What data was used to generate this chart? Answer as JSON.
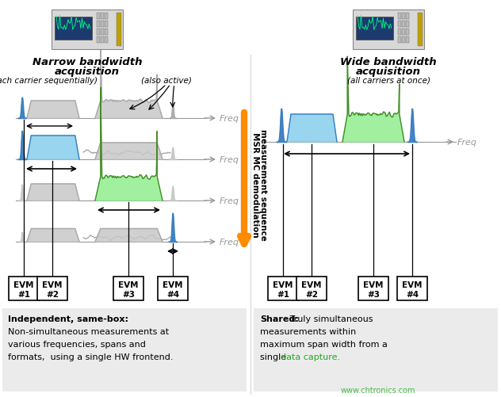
{
  "bg_color": "#ffffff",
  "left_title": "Narrow bandwidth\nacquisition",
  "left_subtitle": "(each carrier sequentially)",
  "also_active": "(also active)",
  "right_title": "Wide bandwidth\nacquisition",
  "right_subtitle": "(all carriers at once)",
  "msr_line1": "MSR MC demodulation",
  "msr_line2": "measurement sequence",
  "freq_label": "Freq",
  "evm_labels": [
    "EVM\n#1",
    "EVM\n#2",
    "EVM\n#3",
    "EVM\n#4"
  ],
  "left_desc_bold": "Independent, same-box:",
  "left_desc_rest": " Non-\nsimultaneous measurements at\nvarious frequencies, spans and\nformats,  using a single HW frontend.",
  "right_desc_bold": "Shared:",
  "right_desc_rest": "  Truly simultaneous\nmeasurements within\nmaximum span width from a\nsingle ",
  "right_desc_end": "data capture.",
  "watermark": "www.chtronics.com",
  "blue_fill": "#87CEEB",
  "blue_edge": "#3A7FC1",
  "green_fill": "#90EE90",
  "green_edge": "#4A8A2A",
  "orange_color": "#FF8C00",
  "gray_color": "#999999",
  "dark_color": "#333333",
  "desc_bg": "#EBEBEB",
  "spike_color": "#3A7FC1",
  "faded_color": "#C8C8C8",
  "faded_edge": "#AAAAAA"
}
